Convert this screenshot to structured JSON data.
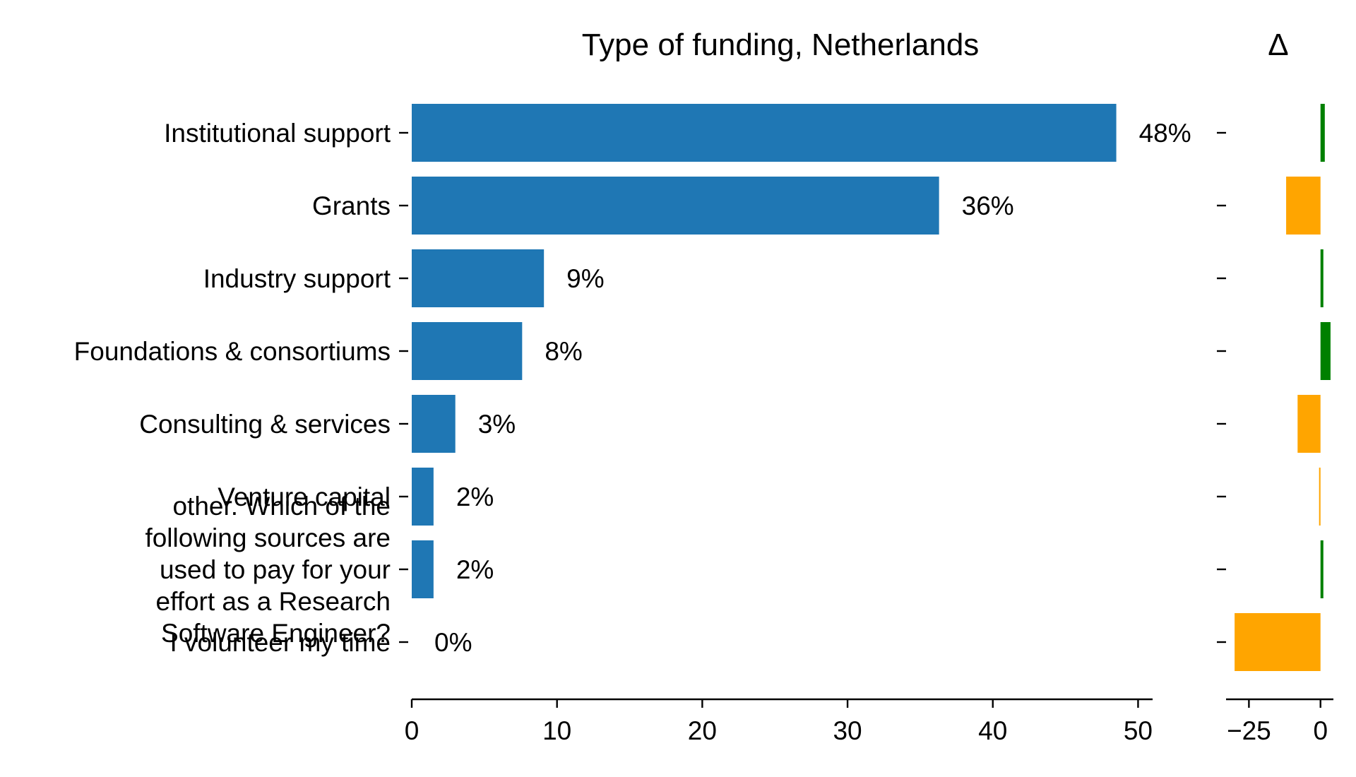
{
  "chart_data": {
    "type": "bar",
    "orientation": "horizontal",
    "title": "Type of funding, Netherlands",
    "categories": [
      "Institutional support",
      "Grants",
      "Industry support",
      "Foundations & consortiums",
      "Consulting & services",
      "Venture capital",
      "other. Which of the following sources are used to pay for your effort as a Research Software Engineer?",
      "I volunteer my time"
    ],
    "category_label_lines": [
      [
        "Institutional support"
      ],
      [
        "Grants"
      ],
      [
        "Industry support"
      ],
      [
        "Foundations & consortiums"
      ],
      [
        "Consulting & services"
      ],
      [
        "Venture capital"
      ],
      [
        "other. Which of the",
        "following sources are",
        "used to pay for your",
        "effort as a Research",
        "Software Engineer?"
      ],
      [
        "I volunteer my time"
      ]
    ],
    "values": [
      48.5,
      36.3,
      9.1,
      7.6,
      3.0,
      1.5,
      1.5,
      0
    ],
    "data_labels": [
      "48%",
      "36%",
      "9%",
      "8%",
      "3%",
      "2%",
      "2%",
      "0%"
    ],
    "bar_color": "#1f77b4",
    "xlim": [
      0,
      51
    ],
    "xticks": [
      0,
      10,
      20,
      30,
      40,
      50
    ],
    "xtick_labels": [
      "0",
      "10",
      "20",
      "30",
      "40",
      "50"
    ],
    "delta": {
      "title": "Δ",
      "values": [
        1.5,
        -12,
        1.0,
        3.5,
        -8,
        -0.5,
        1.0,
        -30
      ],
      "xlim": [
        -32,
        5
      ],
      "xticks": [
        -25,
        0
      ],
      "xtick_labels": [
        "−25",
        "0"
      ],
      "positive_color": "#008000",
      "negative_color": "#ffa500"
    },
    "grid": false,
    "legend": "none"
  }
}
